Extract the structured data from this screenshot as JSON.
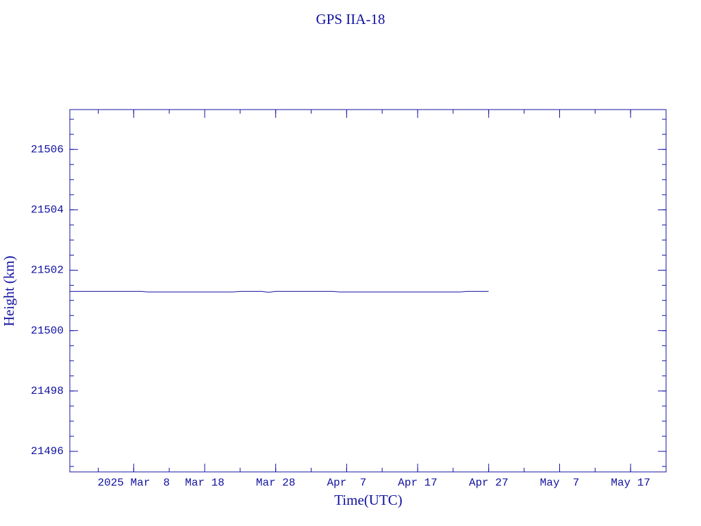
{
  "chart_data": {
    "type": "line",
    "title": "GPS IIA-18",
    "x_label": "Time(UTC)",
    "y_label": "Height (km)",
    "x": [
      "2025-02-27",
      "2025-03-09",
      "2025-03-10",
      "2025-03-22",
      "2025-03-23",
      "2025-03-26",
      "2025-03-27",
      "2025-03-28",
      "2025-04-05",
      "2025-04-06",
      "2025-04-23",
      "2025-04-24",
      "2025-04-27"
    ],
    "series": [
      {
        "name": "Height",
        "color": "#1010a0",
        "values": [
          21501.3,
          21501.3,
          21501.28,
          21501.28,
          21501.3,
          21501.3,
          21501.27,
          21501.3,
          21501.3,
          21501.28,
          21501.28,
          21501.3,
          21501.3
        ]
      }
    ],
    "xlim": [
      "2025-02-27",
      "2025-05-22"
    ],
    "xticks": [
      {
        "value": "2025-03-08",
        "label": "2025 Mar  8"
      },
      {
        "value": "2025-03-18",
        "label": "Mar 18"
      },
      {
        "value": "2025-03-28",
        "label": "Mar 28"
      },
      {
        "value": "2025-04-07",
        "label": "Apr  7"
      },
      {
        "value": "2025-04-17",
        "label": "Apr 17"
      },
      {
        "value": "2025-04-27",
        "label": "Apr 27"
      },
      {
        "value": "2025-05-07",
        "label": "May  7"
      },
      {
        "value": "2025-05-17",
        "label": "May 17"
      }
    ],
    "ylim": [
      21495.32,
      21507.32
    ],
    "yticks": [
      21496,
      21498,
      21500,
      21502,
      21504,
      21506
    ],
    "grid": false
  }
}
